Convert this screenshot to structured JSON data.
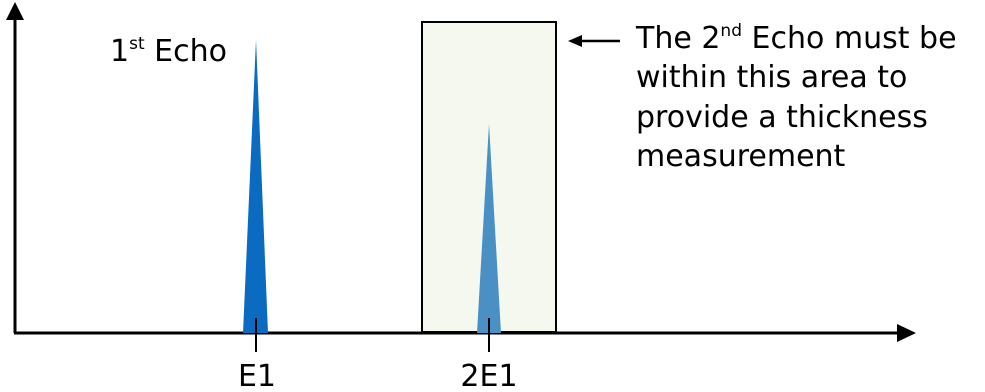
{
  "first_echo": {
    "label_prefix": "1",
    "label_sup": "st",
    "label_suffix": " Echo",
    "axis_label": "E1"
  },
  "second_echo": {
    "axis_label": "2E1"
  },
  "annotation": {
    "line1_prefix": "The 2",
    "line1_sup": "nd",
    "line1_suffix": " Echo must be",
    "line2": "within this area to",
    "line3": "provide a thickness",
    "line4": "measurement"
  },
  "colors": {
    "axis": "#000000",
    "first_echo_peak": "#0a6bc0",
    "second_echo_peak": "#4a90c4",
    "gate_fill": "#f5f8ee",
    "gate_stroke": "#000000",
    "background": "#ffffff"
  }
}
